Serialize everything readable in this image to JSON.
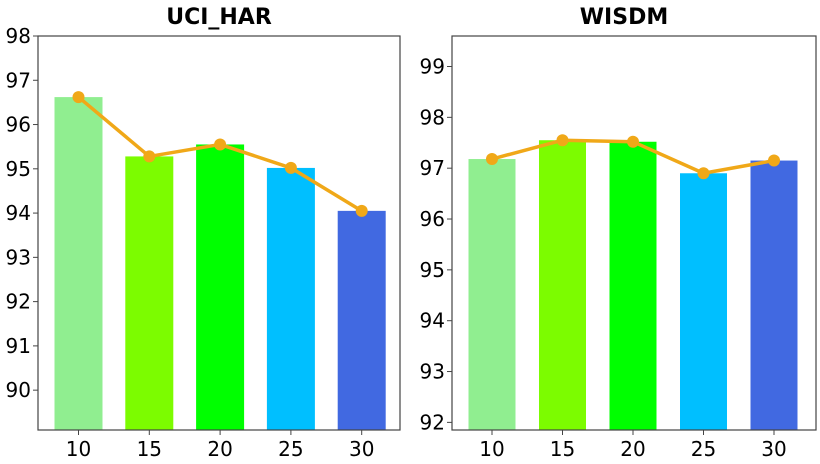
{
  "chart_data": [
    {
      "type": "bar",
      "title": "UCI_HAR",
      "xlabel": "",
      "ylabel": "",
      "categories": [
        "10",
        "15",
        "20",
        "25",
        "30"
      ],
      "values": [
        96.62,
        95.28,
        95.55,
        95.02,
        94.05
      ],
      "line_values": [
        96.62,
        95.28,
        95.55,
        95.02,
        94.05
      ],
      "ylim": [
        89.1,
        98.0
      ],
      "yticks": [
        90,
        91,
        92,
        93,
        94,
        95,
        96,
        97,
        98
      ],
      "bar_colors": [
        "#90ee90",
        "#7cfc00",
        "#00ff00",
        "#00bfff",
        "#4169e1"
      ],
      "line_color": "#f0a818",
      "grid": false,
      "legend": "none"
    },
    {
      "type": "bar",
      "title": "WISDM",
      "xlabel": "",
      "ylabel": "",
      "categories": [
        "10",
        "15",
        "20",
        "25",
        "30"
      ],
      "values": [
        97.18,
        97.55,
        97.52,
        96.9,
        97.15
      ],
      "line_values": [
        97.18,
        97.55,
        97.52,
        96.9,
        97.15
      ],
      "ylim": [
        91.85,
        99.6
      ],
      "yticks": [
        92,
        93,
        94,
        95,
        96,
        97,
        98,
        99
      ],
      "bar_colors": [
        "#90ee90",
        "#7cfc00",
        "#00ff00",
        "#00bfff",
        "#4169e1"
      ],
      "line_color": "#f0a818",
      "grid": false,
      "legend": "none"
    }
  ]
}
